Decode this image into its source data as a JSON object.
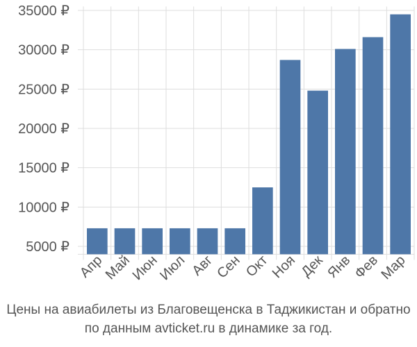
{
  "chart_data": {
    "type": "bar",
    "categories": [
      "Апр",
      "Май",
      "Июн",
      "Июл",
      "Авг",
      "Сен",
      "Окт",
      "Ноя",
      "Дек",
      "Янв",
      "Фев",
      "Мар"
    ],
    "values": [
      7300,
      7300,
      7300,
      7300,
      7300,
      7300,
      12500,
      28700,
      24800,
      30100,
      31600,
      34500
    ],
    "yticks": [
      "5000 ₽",
      "10000 ₽",
      "15000 ₽",
      "20000 ₽",
      "25000 ₽",
      "30000 ₽",
      "35000 ₽"
    ],
    "ytick_values": [
      5000,
      10000,
      15000,
      20000,
      25000,
      30000,
      35000
    ],
    "ylim": [
      4000,
      35500
    ],
    "grid": true,
    "colors": {
      "bar": "#4e77a8",
      "grid": "#dddddd"
    },
    "caption_line1": "Цены на авиабилеты из Благовещенска в Таджикистан и обратно",
    "caption_line2": "по данным avticket.ru в динамике за год."
  }
}
